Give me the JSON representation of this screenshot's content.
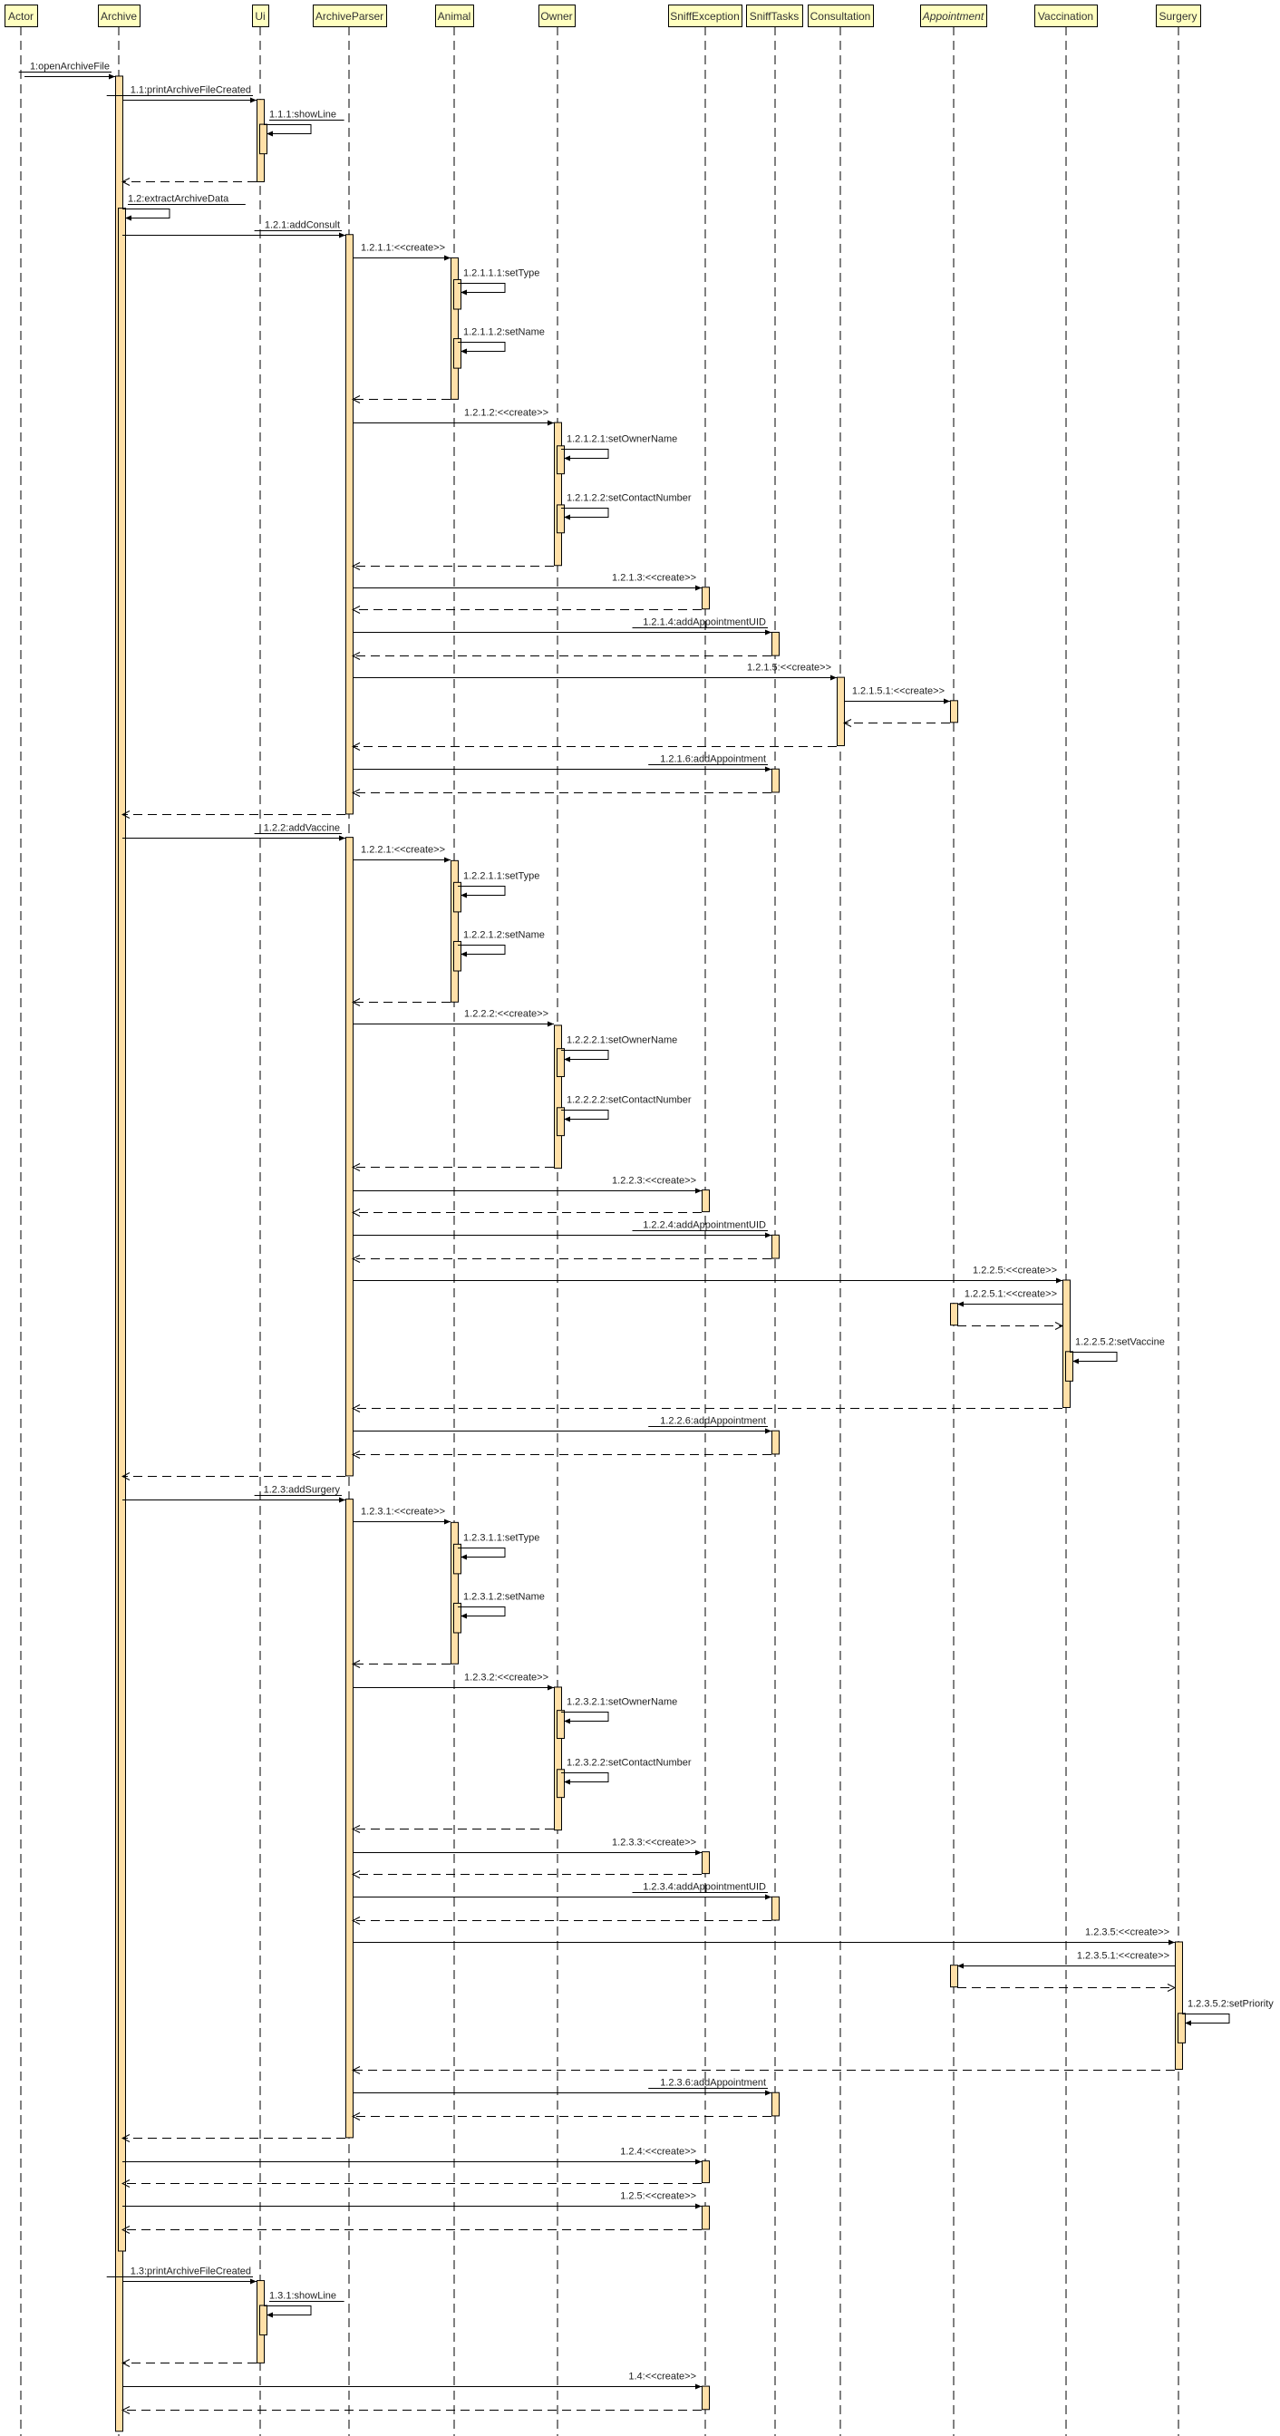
{
  "diagram": {
    "type": "sequence",
    "participants": [
      {
        "id": "Actor",
        "label": "Actor"
      },
      {
        "id": "Archive",
        "label": "Archive"
      },
      {
        "id": "Ui",
        "label": "Ui"
      },
      {
        "id": "ArchiveParser",
        "label": "ArchiveParser"
      },
      {
        "id": "Animal",
        "label": "Animal"
      },
      {
        "id": "Owner",
        "label": "Owner"
      },
      {
        "id": "SniffException",
        "label": "SniffException"
      },
      {
        "id": "SniffTasks",
        "label": "SniffTasks"
      },
      {
        "id": "Consultation",
        "label": "Consultation"
      },
      {
        "id": "Appointment",
        "label": "Appointment",
        "italic": true
      },
      {
        "id": "Vaccination",
        "label": "Vaccination"
      },
      {
        "id": "Surgery",
        "label": "Surgery"
      }
    ],
    "colors": {
      "header_fill": "#ffffc0",
      "activation_fill": "#ffe0a8",
      "line": "#000000"
    },
    "messages": [
      {
        "from": "Actor",
        "to": "Archive",
        "label": "1:openArchiveFile",
        "kind": "call"
      },
      {
        "from": "Archive",
        "to": "Ui",
        "label": "1.1:printArchiveFileCreated",
        "kind": "call"
      },
      {
        "from": "Ui",
        "to": "Ui",
        "label": "1.1.1:showLine",
        "kind": "self"
      },
      {
        "from": "Ui",
        "to": "Archive",
        "label": "",
        "kind": "return"
      },
      {
        "from": "Archive",
        "to": "Archive",
        "label": "1.2:extractArchiveData",
        "kind": "self"
      },
      {
        "from": "Archive",
        "to": "ArchiveParser",
        "label": "1.2.1:addConsult",
        "kind": "call"
      },
      {
        "from": "ArchiveParser",
        "to": "Animal",
        "label": "1.2.1.1:<<create>>",
        "kind": "call"
      },
      {
        "from": "Animal",
        "to": "Animal",
        "label": "1.2.1.1.1:setType",
        "kind": "self"
      },
      {
        "from": "Animal",
        "to": "Animal",
        "label": "1.2.1.1.2:setName",
        "kind": "self"
      },
      {
        "from": "Animal",
        "to": "ArchiveParser",
        "label": "",
        "kind": "return"
      },
      {
        "from": "ArchiveParser",
        "to": "Owner",
        "label": "1.2.1.2:<<create>>",
        "kind": "call"
      },
      {
        "from": "Owner",
        "to": "Owner",
        "label": "1.2.1.2.1:setOwnerName",
        "kind": "self"
      },
      {
        "from": "Owner",
        "to": "Owner",
        "label": "1.2.1.2.2:setContactNumber",
        "kind": "self"
      },
      {
        "from": "Owner",
        "to": "ArchiveParser",
        "label": "",
        "kind": "return"
      },
      {
        "from": "ArchiveParser",
        "to": "SniffException",
        "label": "1.2.1.3:<<create>>",
        "kind": "call"
      },
      {
        "from": "SniffException",
        "to": "ArchiveParser",
        "label": "",
        "kind": "return"
      },
      {
        "from": "ArchiveParser",
        "to": "SniffTasks",
        "label": "1.2.1.4:addAppointmentUID",
        "kind": "call"
      },
      {
        "from": "SniffTasks",
        "to": "ArchiveParser",
        "label": "",
        "kind": "return"
      },
      {
        "from": "ArchiveParser",
        "to": "Consultation",
        "label": "1.2.1.5:<<create>>",
        "kind": "call"
      },
      {
        "from": "Consultation",
        "to": "Appointment",
        "label": "1.2.1.5.1:<<create>>",
        "kind": "call"
      },
      {
        "from": "Appointment",
        "to": "Consultation",
        "label": "",
        "kind": "return"
      },
      {
        "from": "Consultation",
        "to": "ArchiveParser",
        "label": "",
        "kind": "return"
      },
      {
        "from": "ArchiveParser",
        "to": "SniffTasks",
        "label": "1.2.1.6:addAppointment",
        "kind": "call"
      },
      {
        "from": "SniffTasks",
        "to": "ArchiveParser",
        "label": "",
        "kind": "return"
      },
      {
        "from": "ArchiveParser",
        "to": "Archive",
        "label": "",
        "kind": "return"
      },
      {
        "from": "Archive",
        "to": "ArchiveParser",
        "label": "1.2.2:addVaccine",
        "kind": "call"
      },
      {
        "from": "ArchiveParser",
        "to": "Animal",
        "label": "1.2.2.1:<<create>>",
        "kind": "call"
      },
      {
        "from": "Animal",
        "to": "Animal",
        "label": "1.2.2.1.1:setType",
        "kind": "self"
      },
      {
        "from": "Animal",
        "to": "Animal",
        "label": "1.2.2.1.2:setName",
        "kind": "self"
      },
      {
        "from": "Animal",
        "to": "ArchiveParser",
        "label": "",
        "kind": "return"
      },
      {
        "from": "ArchiveParser",
        "to": "Owner",
        "label": "1.2.2.2:<<create>>",
        "kind": "call"
      },
      {
        "from": "Owner",
        "to": "Owner",
        "label": "1.2.2.2.1:setOwnerName",
        "kind": "self"
      },
      {
        "from": "Owner",
        "to": "Owner",
        "label": "1.2.2.2.2:setContactNumber",
        "kind": "self"
      },
      {
        "from": "Owner",
        "to": "ArchiveParser",
        "label": "",
        "kind": "return"
      },
      {
        "from": "ArchiveParser",
        "to": "SniffException",
        "label": "1.2.2.3:<<create>>",
        "kind": "call"
      },
      {
        "from": "SniffException",
        "to": "ArchiveParser",
        "label": "",
        "kind": "return"
      },
      {
        "from": "ArchiveParser",
        "to": "SniffTasks",
        "label": "1.2.2.4:addAppointmentUID",
        "kind": "call"
      },
      {
        "from": "SniffTasks",
        "to": "ArchiveParser",
        "label": "",
        "kind": "return"
      },
      {
        "from": "ArchiveParser",
        "to": "Vaccination",
        "label": "1.2.2.5:<<create>>",
        "kind": "call"
      },
      {
        "from": "Vaccination",
        "to": "Appointment",
        "label": "1.2.2.5.1:<<create>>",
        "kind": "call"
      },
      {
        "from": "Appointment",
        "to": "Vaccination",
        "label": "",
        "kind": "return"
      },
      {
        "from": "Vaccination",
        "to": "Vaccination",
        "label": "1.2.2.5.2:setVaccine",
        "kind": "self"
      },
      {
        "from": "Vaccination",
        "to": "ArchiveParser",
        "label": "",
        "kind": "return"
      },
      {
        "from": "ArchiveParser",
        "to": "SniffTasks",
        "label": "1.2.2.6:addAppointment",
        "kind": "call"
      },
      {
        "from": "SniffTasks",
        "to": "ArchiveParser",
        "label": "",
        "kind": "return"
      },
      {
        "from": "ArchiveParser",
        "to": "Archive",
        "label": "",
        "kind": "return"
      },
      {
        "from": "Archive",
        "to": "ArchiveParser",
        "label": "1.2.3:addSurgery",
        "kind": "call"
      },
      {
        "from": "ArchiveParser",
        "to": "Animal",
        "label": "1.2.3.1:<<create>>",
        "kind": "call"
      },
      {
        "from": "Animal",
        "to": "Animal",
        "label": "1.2.3.1.1:setType",
        "kind": "self"
      },
      {
        "from": "Animal",
        "to": "Animal",
        "label": "1.2.3.1.2:setName",
        "kind": "self"
      },
      {
        "from": "Animal",
        "to": "ArchiveParser",
        "label": "",
        "kind": "return"
      },
      {
        "from": "ArchiveParser",
        "to": "Owner",
        "label": "1.2.3.2:<<create>>",
        "kind": "call"
      },
      {
        "from": "Owner",
        "to": "Owner",
        "label": "1.2.3.2.1:setOwnerName",
        "kind": "self"
      },
      {
        "from": "Owner",
        "to": "Owner",
        "label": "1.2.3.2.2:setContactNumber",
        "kind": "self"
      },
      {
        "from": "Owner",
        "to": "ArchiveParser",
        "label": "",
        "kind": "return"
      },
      {
        "from": "ArchiveParser",
        "to": "SniffException",
        "label": "1.2.3.3:<<create>>",
        "kind": "call"
      },
      {
        "from": "SniffException",
        "to": "ArchiveParser",
        "label": "",
        "kind": "return"
      },
      {
        "from": "ArchiveParser",
        "to": "SniffTasks",
        "label": "1.2.3.4:addAppointmentUID",
        "kind": "call"
      },
      {
        "from": "SniffTasks",
        "to": "ArchiveParser",
        "label": "",
        "kind": "return"
      },
      {
        "from": "ArchiveParser",
        "to": "Surgery",
        "label": "1.2.3.5:<<create>>",
        "kind": "call"
      },
      {
        "from": "Surgery",
        "to": "Appointment",
        "label": "1.2.3.5.1:<<create>>",
        "kind": "call"
      },
      {
        "from": "Appointment",
        "to": "Surgery",
        "label": "",
        "kind": "return"
      },
      {
        "from": "Surgery",
        "to": "Surgery",
        "label": "1.2.3.5.2:setPriority",
        "kind": "self"
      },
      {
        "from": "Surgery",
        "to": "ArchiveParser",
        "label": "",
        "kind": "return"
      },
      {
        "from": "ArchiveParser",
        "to": "SniffTasks",
        "label": "1.2.3.6:addAppointment",
        "kind": "call"
      },
      {
        "from": "SniffTasks",
        "to": "ArchiveParser",
        "label": "",
        "kind": "return"
      },
      {
        "from": "ArchiveParser",
        "to": "Archive",
        "label": "",
        "kind": "return"
      },
      {
        "from": "Archive",
        "to": "SniffException",
        "label": "1.2.4:<<create>>",
        "kind": "call"
      },
      {
        "from": "SniffException",
        "to": "Archive",
        "label": "",
        "kind": "return"
      },
      {
        "from": "Archive",
        "to": "SniffException",
        "label": "1.2.5:<<create>>",
        "kind": "call"
      },
      {
        "from": "SniffException",
        "to": "Archive",
        "label": "",
        "kind": "return"
      },
      {
        "from": "Archive",
        "to": "Ui",
        "label": "1.3:printArchiveFileCreated",
        "kind": "call"
      },
      {
        "from": "Ui",
        "to": "Ui",
        "label": "1.3.1:showLine",
        "kind": "self"
      },
      {
        "from": "Ui",
        "to": "Archive",
        "label": "",
        "kind": "return"
      },
      {
        "from": "Archive",
        "to": "SniffException",
        "label": "1.4:<<create>>",
        "kind": "call"
      },
      {
        "from": "SniffException",
        "to": "Archive",
        "label": "",
        "kind": "return"
      }
    ]
  }
}
